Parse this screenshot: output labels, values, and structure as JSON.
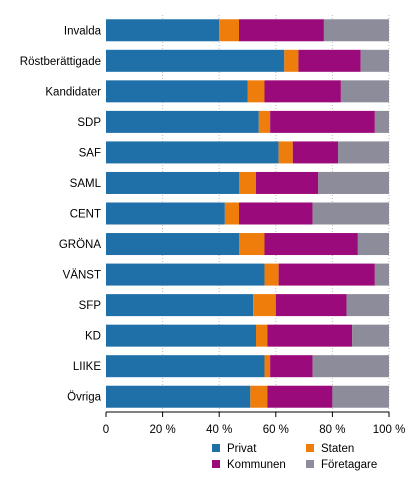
{
  "chart_data": {
    "type": "bar",
    "orientation": "horizontal",
    "stacked": true,
    "title": "",
    "xlabel": "",
    "ylabel": "",
    "xlim": [
      0,
      100
    ],
    "x_ticks": [
      "0",
      "20 %",
      "40 %",
      "60 %",
      "80 %",
      "100 %"
    ],
    "grid": true,
    "legend_position": "bottom-right",
    "categories": [
      "Invalda",
      "Röstberättigade",
      "Kandidater",
      "SDP",
      "SAF",
      "SAML",
      "CENT",
      "GRÖNA",
      "VÄNST",
      "SFP",
      "KD",
      "LIIKE",
      "Övriga"
    ],
    "series": [
      {
        "name": "Privat",
        "color": "#1f6fa8",
        "values": [
          40,
          63,
          50,
          54,
          61,
          47,
          42,
          47,
          56,
          52,
          53,
          56,
          51
        ]
      },
      {
        "name": "Staten",
        "color": "#ee7d0b",
        "values": [
          7,
          5,
          6,
          4,
          5,
          6,
          5,
          9,
          5,
          8,
          4,
          2,
          6
        ]
      },
      {
        "name": "Kommunen",
        "color": "#9b0a7a",
        "values": [
          30,
          22,
          27,
          37,
          16,
          22,
          26,
          33,
          34,
          25,
          30,
          15,
          23
        ]
      },
      {
        "name": "Företagare",
        "color": "#8c8c9a",
        "values": [
          23,
          10,
          17,
          5,
          18,
          25,
          27,
          11,
          5,
          15,
          13,
          27,
          20
        ]
      }
    ]
  }
}
